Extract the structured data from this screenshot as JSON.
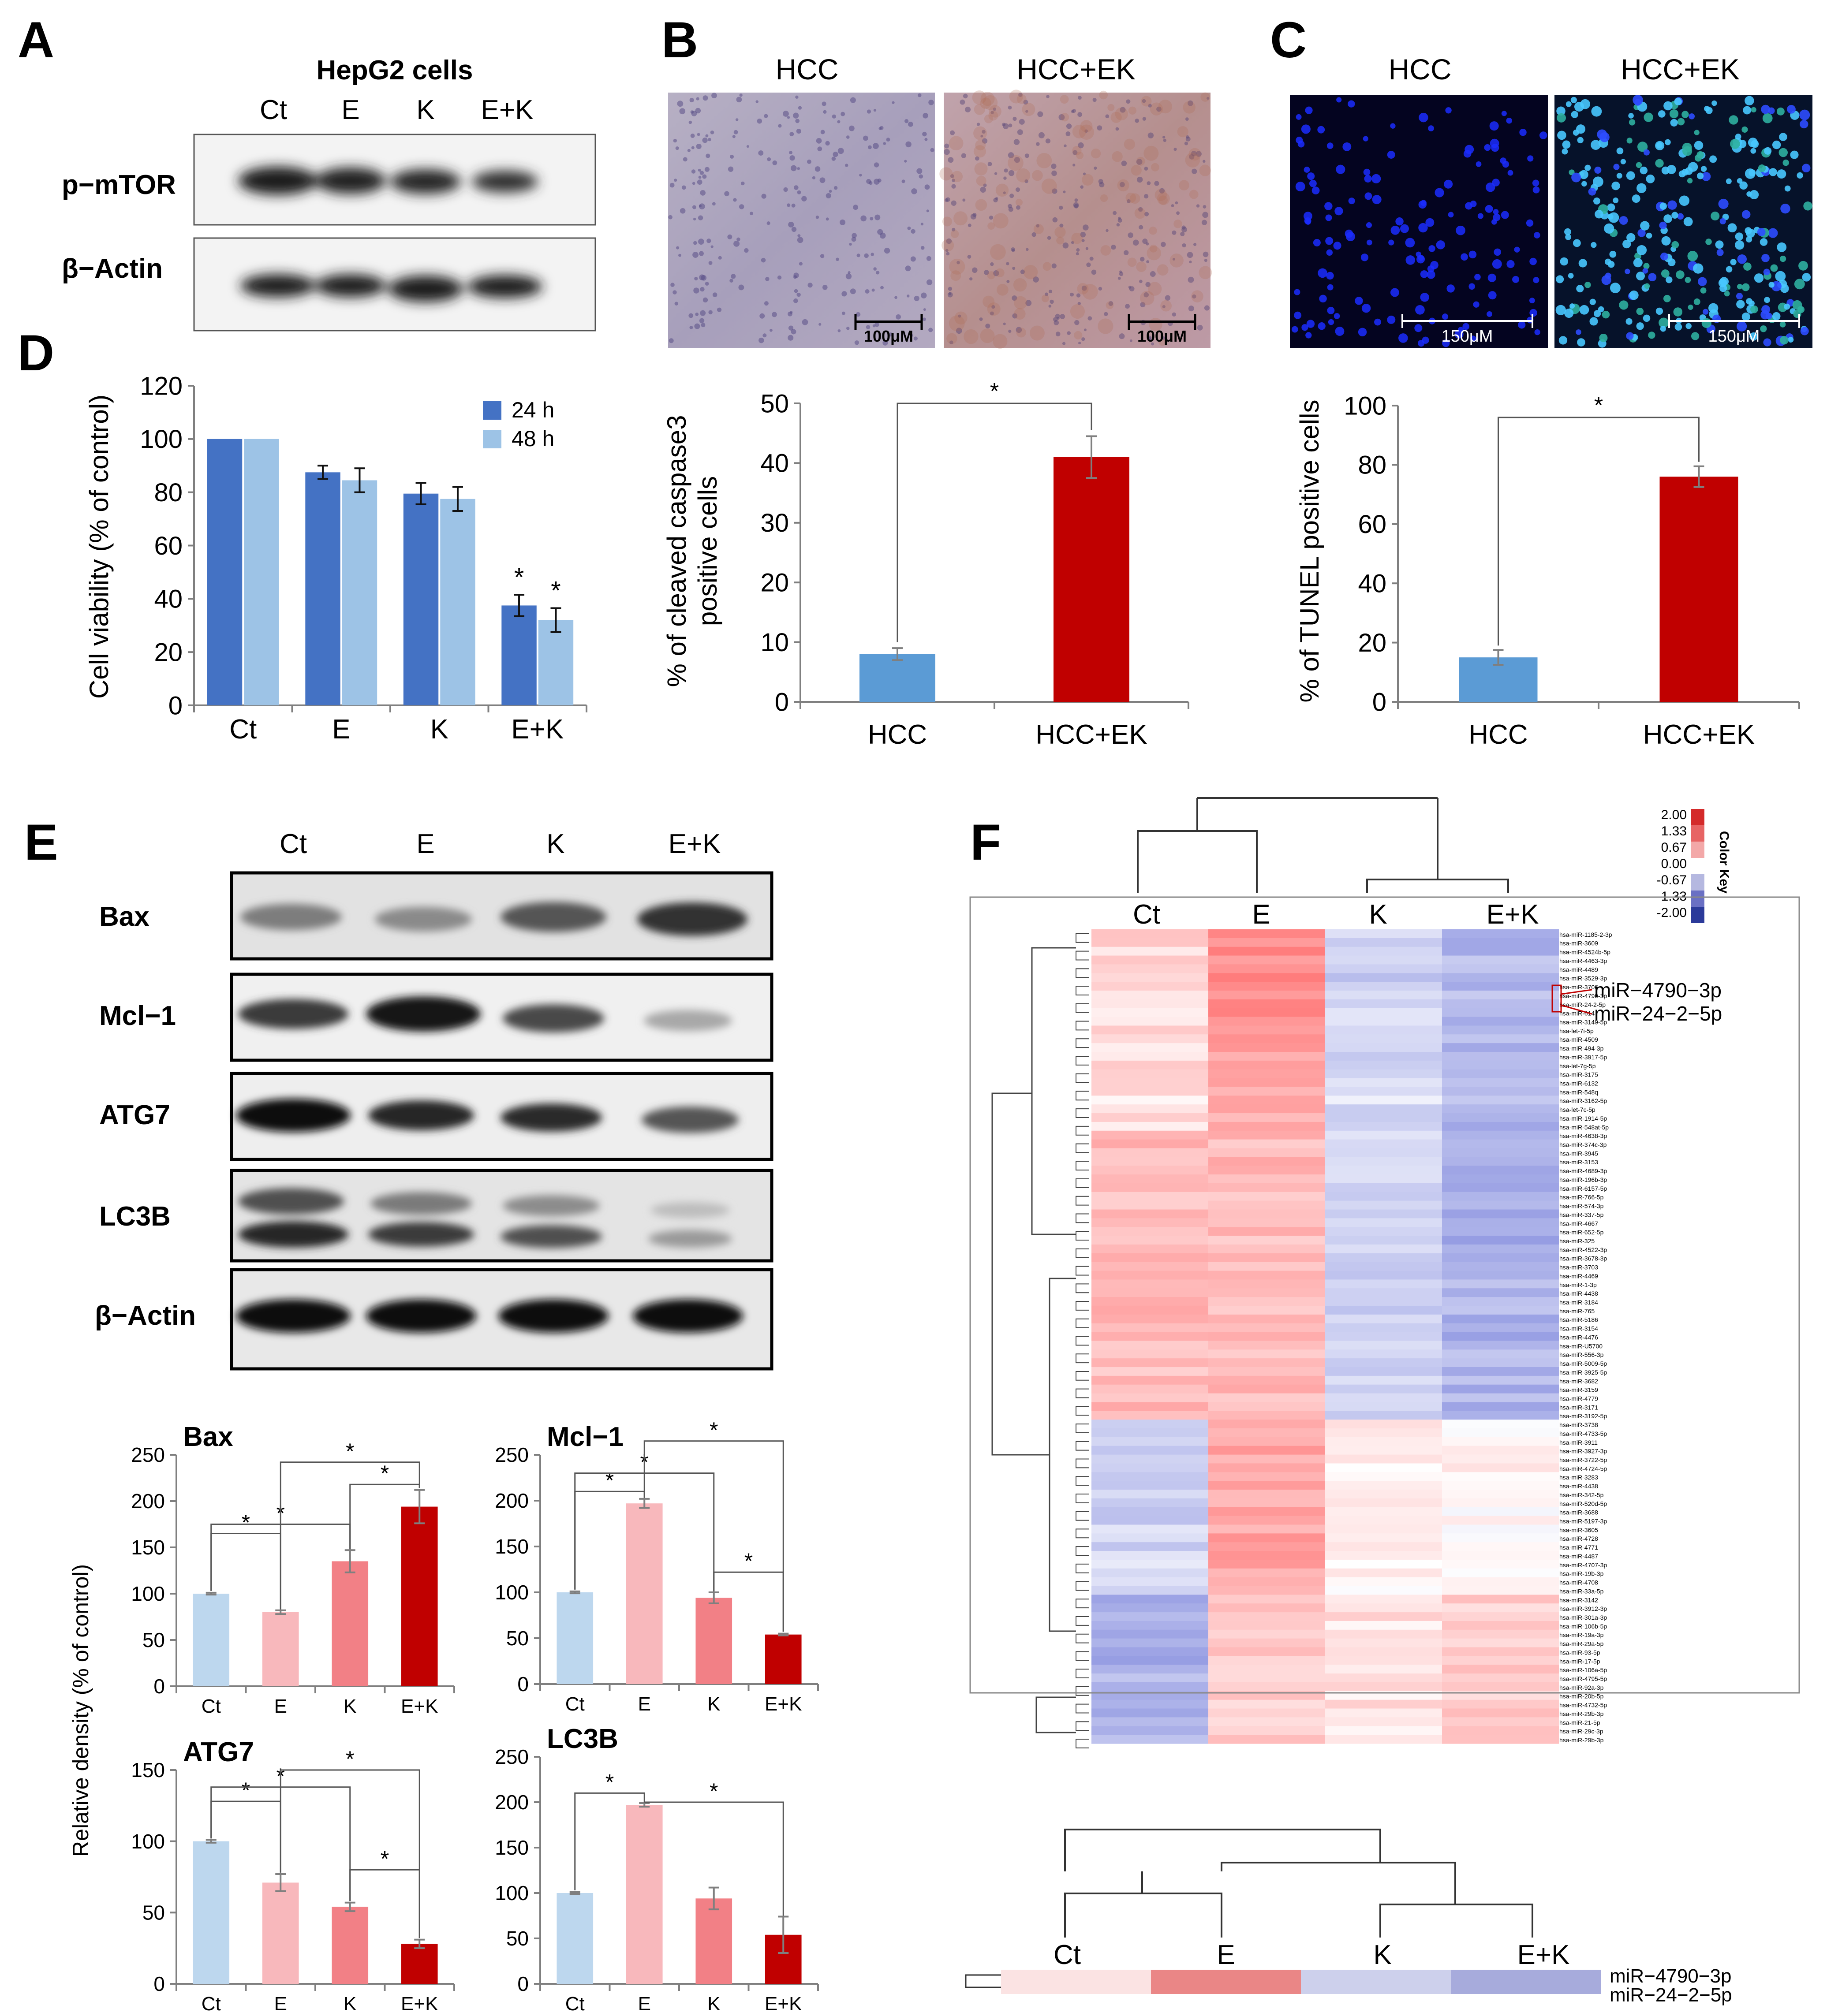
{
  "panels": {
    "A": {
      "letter": "A",
      "title": "HepG2 cells",
      "lanes": [
        "Ct",
        "E",
        "K",
        "E+K"
      ],
      "rows": [
        "p−mTOR",
        "β−Actin"
      ]
    },
    "B": {
      "letter": "B",
      "image_labels": [
        "HCC",
        "HCC+EK"
      ],
      "scale_bar": "100μM"
    },
    "C": {
      "letter": "C",
      "image_labels": [
        "HCC",
        "HCC+EK"
      ],
      "scale_bar": "150μM"
    },
    "D": {
      "letter": "D"
    },
    "E": {
      "letter": "E",
      "lanes": [
        "Ct",
        "E",
        "K",
        "E+K"
      ],
      "rows": [
        "Bax",
        "Mcl−1",
        "ATG7",
        "LC3B",
        "β−Actin"
      ],
      "ylabel_shared": "Relative density (% of control)"
    },
    "F": {
      "letter": "F",
      "columns": [
        "Ct",
        "E",
        "K",
        "E+K"
      ],
      "highlight_labels": [
        "miR−4790−3p",
        "miR−24−2−5p"
      ],
      "color_key": {
        "title": "Color Key",
        "ticks": [
          "2.00",
          "1.33",
          "0.67",
          "0.00",
          "-0.67",
          "-1.33",
          "-2.00"
        ],
        "colors": [
          "#d42a2a",
          "#e76464",
          "#f3a8a8",
          "#ffffff",
          "#b5b8e0",
          "#6a70c4",
          "#2b3a9a"
        ]
      },
      "row_labels": [
        "hsa-miR-1185-2-3p",
        "hsa-miR-3609",
        "hsa-miR-4524b-5p",
        "hsa-miR-4463-3p",
        "hsa-miR-4489",
        "hsa-miR-3529-3p",
        "hsa-miR-3706",
        "hsa-miR-4790-3p",
        "hsa-miR-24-2-5p",
        "hsa-miR-614",
        "hsa-miR-3149-5p",
        "hsa-let-7i-5p",
        "hsa-miR-4509",
        "hsa-miR-494-3p",
        "hsa-miR-3917-5p",
        "hsa-let-7g-5p",
        "hsa-miR-3175",
        "hsa-miR-6132",
        "hsa-miR-548q",
        "hsa-miR-3162-5p",
        "hsa-let-7c-5p",
        "hsa-miR-1914-5p",
        "hsa-miR-548at-5p",
        "hsa-miR-4638-3p",
        "hsa-miR-374c-3p",
        "hsa-miR-3945",
        "hsa-miR-3153",
        "hsa-miR-4689-3p",
        "hsa-miR-196b-3p",
        "hsa-miR-6157-5p",
        "hsa-miR-766-5p",
        "hsa-miR-574-3p",
        "hsa-miR-337-5p",
        "hsa-miR-4667",
        "hsa-miR-652-5p",
        "hsa-miR-325",
        "hsa-miR-4522-3p",
        "hsa-miR-3678-3p",
        "hsa-miR-3703",
        "hsa-miR-4469",
        "hsa-miR-1-3p",
        "hsa-miR-4438",
        "hsa-miR-3184",
        "hsa-miR-765",
        "hsa-miR-5186",
        "hsa-miR-3154",
        "hsa-miR-4476",
        "hsa-miR-U5700",
        "hsa-miR-556-3p",
        "hsa-miR-5009-5p",
        "hsa-miR-3925-5p",
        "hsa-miR-3682",
        "hsa-miR-3159",
        "hsa-miR-4779",
        "hsa-miR-3171",
        "hsa-miR-3192-5p",
        "hsa-miR-3738",
        "hsa-miR-4733-5p",
        "hsa-miR-3911",
        "hsa-miR-3927-3p",
        "hsa-miR-3722-5p",
        "hsa-miR-4724-5p",
        "hsa-miR-3283",
        "hsa-miR-4438",
        "hsa-miR-342-5p",
        "hsa-miR-520d-5p",
        "hsa-miR-3688",
        "hsa-miR-5197-3p",
        "hsa-miR-3605",
        "hsa-miR-4728",
        "hsa-miR-4771",
        "hsa-miR-4487",
        "hsa-miR-4707-3p",
        "hsa-miR-19b-3p",
        "hsa-miR-4708",
        "hsa-miR-33a-5p",
        "hsa-miR-3142",
        "hsa-miR-3912-3p",
        "hsa-miR-301a-3p",
        "hsa-miR-106b-5p",
        "hsa-miR-19a-3p",
        "hsa-miR-29a-5p",
        "hsa-miR-93-5p",
        "hsa-miR-17-5p",
        "hsa-miR-106a-5p",
        "hsa-miR-4795-5p",
        "hsa-miR-92a-3p",
        "hsa-miR-20b-5p",
        "hsa-miR-4732-5p",
        "hsa-miR-29b-3p",
        "hsa-miR-21-5p",
        "hsa-miR-29c-3p",
        "hsa-miR-29b-3p"
      ],
      "sub_columns": [
        "Ct",
        "E",
        "K",
        "E+K"
      ],
      "sub_row_labels": [
        "miR−4790−3p",
        "miR−24−2−5p"
      ]
    }
  },
  "chart_data": [
    {
      "id": "D",
      "type": "bar",
      "categories": [
        "Ct",
        "E",
        "K",
        "E+K"
      ],
      "series": [
        {
          "name": "24 h",
          "values": [
            100,
            87.5,
            79.5,
            37.5
          ],
          "errors": [
            0,
            2.5,
            4,
            4
          ],
          "color": "#4472c4"
        },
        {
          "name": "48 h",
          "values": [
            100,
            84.5,
            77.5,
            32
          ],
          "errors": [
            0,
            4.5,
            4.5,
            4.5
          ],
          "color": "#9dc3e6"
        }
      ],
      "ylabel": "Cell viability (% of control)",
      "ylim": [
        0,
        120
      ],
      "yticks": [
        "0",
        "20",
        "40",
        "60",
        "80",
        "100",
        "120"
      ],
      "significance": [
        "*",
        "*"
      ],
      "legend_placement": "top-right"
    },
    {
      "id": "B",
      "type": "bar",
      "categories": [
        "HCC",
        "HCC+EK"
      ],
      "values": [
        8,
        41
      ],
      "errors": [
        1,
        3.5
      ],
      "colors": [
        "#5b9bd5",
        "#c00000"
      ],
      "ylabel": "% of cleaved  caspase3 positive cells",
      "ylim": [
        0,
        50
      ],
      "yticks": [
        "0",
        "10",
        "20",
        "30",
        "40",
        "50"
      ],
      "significance": "*"
    },
    {
      "id": "C",
      "type": "bar",
      "categories": [
        "HCC",
        "HCC+EK"
      ],
      "values": [
        15,
        76
      ],
      "errors": [
        2.5,
        3.5
      ],
      "colors": [
        "#5b9bd5",
        "#c00000"
      ],
      "ylabel": "% of TUNEL positive cells",
      "ylim": [
        0,
        100
      ],
      "yticks": [
        "0",
        "20",
        "40",
        "60",
        "80",
        "100"
      ],
      "significance": "*"
    },
    {
      "id": "E-Bax",
      "type": "bar",
      "title": "Bax",
      "categories": [
        "Ct",
        "E",
        "K",
        "E+K"
      ],
      "values": [
        100,
        80,
        135,
        194
      ],
      "errors": [
        1,
        2,
        12,
        18
      ],
      "ylim": [
        0,
        250
      ],
      "yticks": [
        "0",
        "50",
        "100",
        "150",
        "200",
        "250"
      ],
      "significance": "*"
    },
    {
      "id": "E-Mcl1",
      "type": "bar",
      "title": "Mcl−1",
      "categories": [
        "Ct",
        "E",
        "K",
        "E+K"
      ],
      "values": [
        100,
        197,
        94,
        54
      ],
      "errors": [
        1,
        5,
        6,
        1
      ],
      "ylim": [
        0,
        250
      ],
      "yticks": [
        "0",
        "50",
        "100",
        "150",
        "200",
        "250"
      ],
      "significance": "*"
    },
    {
      "id": "E-ATG7",
      "type": "bar",
      "title": "ATG7",
      "categories": [
        "Ct",
        "E",
        "K",
        "E+K"
      ],
      "values": [
        100,
        71,
        54,
        28
      ],
      "errors": [
        1,
        6,
        3,
        3
      ],
      "ylim": [
        0,
        150
      ],
      "yticks": [
        "0",
        "50",
        "100",
        "150"
      ],
      "significance": "*"
    },
    {
      "id": "E-LC3B",
      "type": "bar",
      "title": "LC3B",
      "categories": [
        "Ct",
        "E",
        "K",
        "E+K"
      ],
      "values": [
        100,
        197,
        94,
        54
      ],
      "errors": [
        1,
        2,
        12,
        20
      ],
      "ylim": [
        0,
        250
      ],
      "yticks": [
        "0",
        "50",
        "100",
        "150",
        "200",
        "250"
      ],
      "significance": "*"
    }
  ]
}
